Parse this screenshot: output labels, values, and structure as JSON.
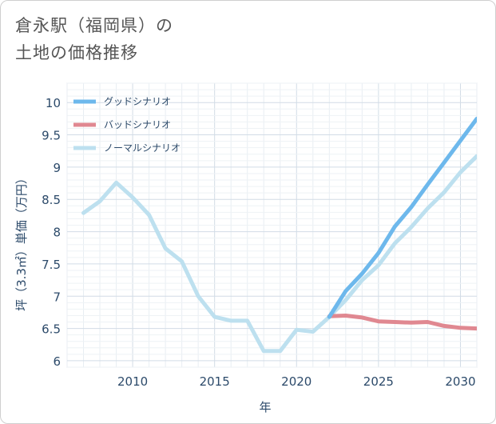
{
  "title_line1": "倉永駅（福岡県）の",
  "title_line2": "土地の価格推移",
  "chart_data": {
    "type": "line",
    "xlabel": "年",
    "ylabel": "坪（3.3㎡）単価（万円）",
    "xlim": [
      2006,
      2031
    ],
    "ylim": [
      5.9,
      10.3
    ],
    "xticks": [
      "2010",
      "2015",
      "2020",
      "2025",
      "2030"
    ],
    "yticks": [
      "6",
      "6.5",
      "7",
      "7.5",
      "8",
      "8.5",
      "9",
      "9.5",
      "10"
    ],
    "grid": true,
    "legend_position": "top-left",
    "series": [
      {
        "name": "グッドシナリオ",
        "color": "#6db8ec",
        "x": [
          2022,
          2023,
          2024,
          2025,
          2026,
          2027,
          2028,
          2029,
          2030,
          2031
        ],
        "y": [
          6.68,
          7.08,
          7.35,
          7.67,
          8.08,
          8.38,
          8.73,
          9.07,
          9.41,
          9.75
        ]
      },
      {
        "name": "バッドシナリオ",
        "color": "#e08891",
        "x": [
          2022,
          2023,
          2024,
          2025,
          2026,
          2027,
          2028,
          2029,
          2030,
          2031
        ],
        "y": [
          6.69,
          6.7,
          6.67,
          6.61,
          6.6,
          6.59,
          6.6,
          6.54,
          6.51,
          6.5
        ]
      },
      {
        "name": "ノーマルシナリオ",
        "color": "#bde0ef",
        "x": [
          2007,
          2008,
          2009,
          2010,
          2011,
          2012,
          2013,
          2014,
          2015,
          2016,
          2017,
          2018,
          2019,
          2020,
          2021,
          2022,
          2023,
          2024,
          2025,
          2026,
          2027,
          2028,
          2029,
          2030,
          2031
        ],
        "y": [
          8.29,
          8.47,
          8.76,
          8.53,
          8.26,
          7.74,
          7.54,
          7.0,
          6.68,
          6.62,
          6.62,
          6.15,
          6.15,
          6.48,
          6.45,
          6.68,
          6.94,
          7.25,
          7.48,
          7.82,
          8.07,
          8.36,
          8.61,
          8.92,
          9.17
        ]
      }
    ]
  }
}
